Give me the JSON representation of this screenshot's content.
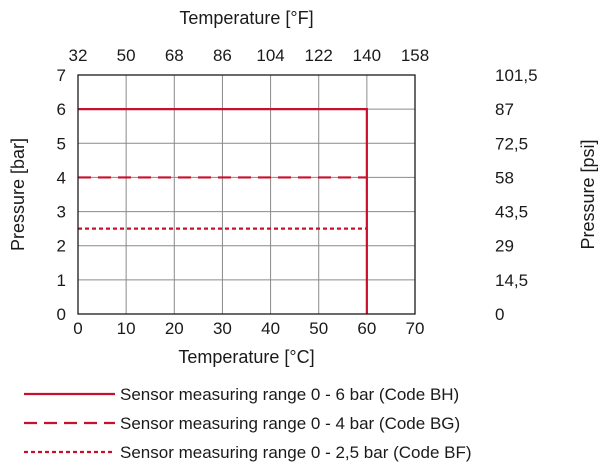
{
  "chart_data": {
    "type": "line",
    "x_bottom": {
      "label": "Temperature [°C]",
      "min": 0,
      "max": 70,
      "ticks": [
        0,
        10,
        20,
        30,
        40,
        50,
        60,
        70
      ]
    },
    "x_top": {
      "label": "Temperature [°F]",
      "ticks": [
        "32",
        "50",
        "68",
        "86",
        "104",
        "122",
        "140",
        "158"
      ]
    },
    "y_left": {
      "label": "Pressure [bar]",
      "min": 0,
      "max": 7,
      "ticks": [
        0,
        1,
        2,
        3,
        4,
        5,
        6,
        7
      ]
    },
    "y_right": {
      "label": "Pressure [psi]",
      "ticks": [
        "0",
        "14,5",
        "29",
        "43,5",
        "58",
        "72,5",
        "87",
        "101,5"
      ]
    },
    "grid": true,
    "legend_position": "bottom",
    "colors": {
      "series": "#c8102e",
      "grid": "#8a8a8a",
      "axis": "#1a1a1a"
    },
    "series": [
      {
        "name": "Sensor measuring range 0 - 6 bar (Code BH)",
        "style": "solid",
        "points": [
          [
            0,
            6
          ],
          [
            60,
            6
          ],
          [
            60,
            0
          ]
        ]
      },
      {
        "name": "Sensor measuring range 0 - 4 bar (Code BG)",
        "style": "dashed",
        "points": [
          [
            0,
            4
          ],
          [
            60,
            4
          ]
        ]
      },
      {
        "name": "Sensor measuring range 0 - 2,5 bar (Code BF)",
        "style": "dotted",
        "points": [
          [
            0,
            2.5
          ],
          [
            60,
            2.5
          ]
        ]
      }
    ]
  }
}
